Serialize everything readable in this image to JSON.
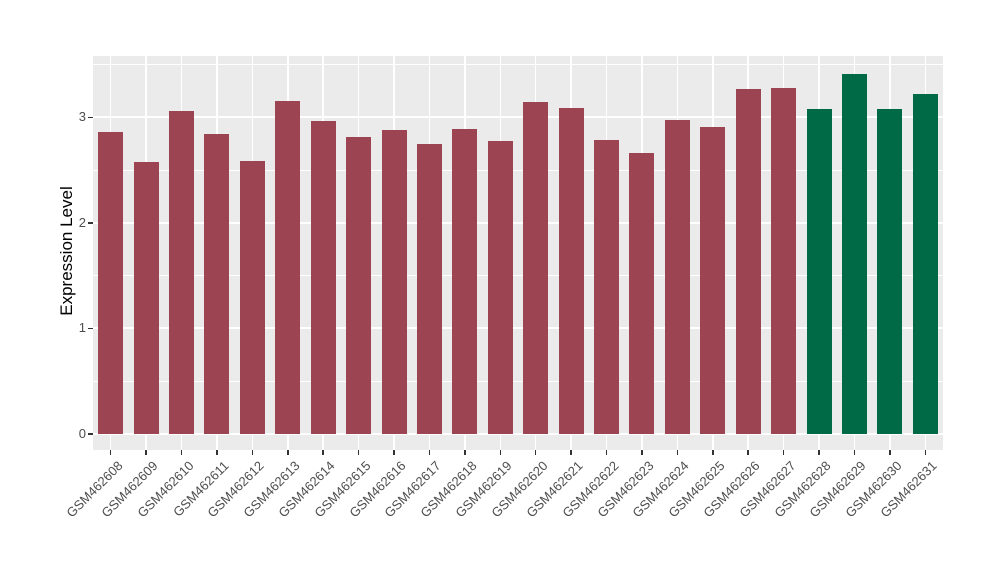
{
  "chart_data": {
    "type": "bar",
    "title": "",
    "xlabel": "",
    "ylabel": "Expression Level",
    "categories": [
      "GSM462608",
      "GSM462609",
      "GSM462610",
      "GSM462611",
      "GSM462612",
      "GSM462613",
      "GSM462614",
      "GSM462615",
      "GSM462616",
      "GSM462617",
      "GSM462618",
      "GSM462619",
      "GSM462620",
      "GSM462621",
      "GSM462622",
      "GSM462623",
      "GSM462624",
      "GSM462625",
      "GSM462626",
      "GSM462627",
      "GSM462628",
      "GSM462629",
      "GSM462630",
      "GSM462631"
    ],
    "values": [
      2.86,
      2.58,
      3.06,
      2.84,
      2.59,
      3.16,
      2.97,
      2.81,
      2.88,
      2.75,
      2.89,
      2.78,
      3.15,
      3.09,
      2.79,
      2.66,
      2.98,
      2.91,
      3.27,
      3.28,
      3.08,
      3.41,
      3.08,
      3.22
    ],
    "bar_groups": [
      "A",
      "A",
      "A",
      "A",
      "A",
      "A",
      "A",
      "A",
      "A",
      "A",
      "A",
      "A",
      "A",
      "A",
      "A",
      "A",
      "A",
      "A",
      "A",
      "A",
      "B",
      "B",
      "B",
      "B"
    ],
    "group_colors": {
      "A": "#9C4452",
      "B": "#006A47"
    },
    "yticks": [
      0,
      1,
      2,
      3
    ],
    "ytick_labels": [
      "0",
      "1",
      "2",
      "3"
    ],
    "ylim": [
      -0.152,
      3.582
    ],
    "grid": "on",
    "legend": "none",
    "panel_bg": "#EBEBEB",
    "grid_major_color": "#FFFFFF",
    "grid_minor_color": "#FFFFFF",
    "axis_text_color": "#4D4D4D",
    "tick_color": "#333333"
  }
}
